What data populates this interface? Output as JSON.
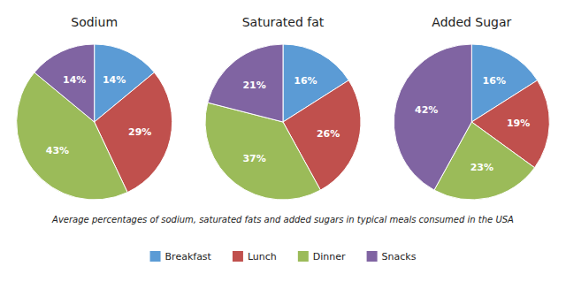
{
  "chart_data": [
    {
      "type": "pie",
      "title": "Sodium",
      "categories": [
        "Breakfast",
        "Lunch",
        "Dinner",
        "Snacks"
      ],
      "values": [
        14,
        29,
        43,
        14
      ],
      "value_labels": [
        "14%",
        "29%",
        "43%",
        "14%"
      ],
      "colors": [
        "#5b9bd5",
        "#c0504d",
        "#9bbb59",
        "#8064a2"
      ],
      "data_labels": true,
      "legend": "bottom"
    },
    {
      "type": "pie",
      "title": "Saturated fat",
      "categories": [
        "Breakfast",
        "Lunch",
        "Dinner",
        "Snacks"
      ],
      "values": [
        16,
        26,
        37,
        21
      ],
      "value_labels": [
        "16%",
        "26%",
        "37%",
        "21%"
      ],
      "colors": [
        "#5b9bd5",
        "#c0504d",
        "#9bbb59",
        "#8064a2"
      ],
      "data_labels": true
    },
    {
      "type": "pie",
      "title": "Added Sugar",
      "categories": [
        "Breakfast",
        "Lunch",
        "Dinner",
        "Snacks"
      ],
      "values": [
        16,
        19,
        23,
        42
      ],
      "value_labels": [
        "16%",
        "19%",
        "23%",
        "42%"
      ],
      "colors": [
        "#5b9bd5",
        "#c0504d",
        "#9bbb59",
        "#8064a2"
      ],
      "data_labels": true
    }
  ],
  "caption": "Average percentages of sodium, saturated fats and added sugars in typical meals consumed in the USA"
}
